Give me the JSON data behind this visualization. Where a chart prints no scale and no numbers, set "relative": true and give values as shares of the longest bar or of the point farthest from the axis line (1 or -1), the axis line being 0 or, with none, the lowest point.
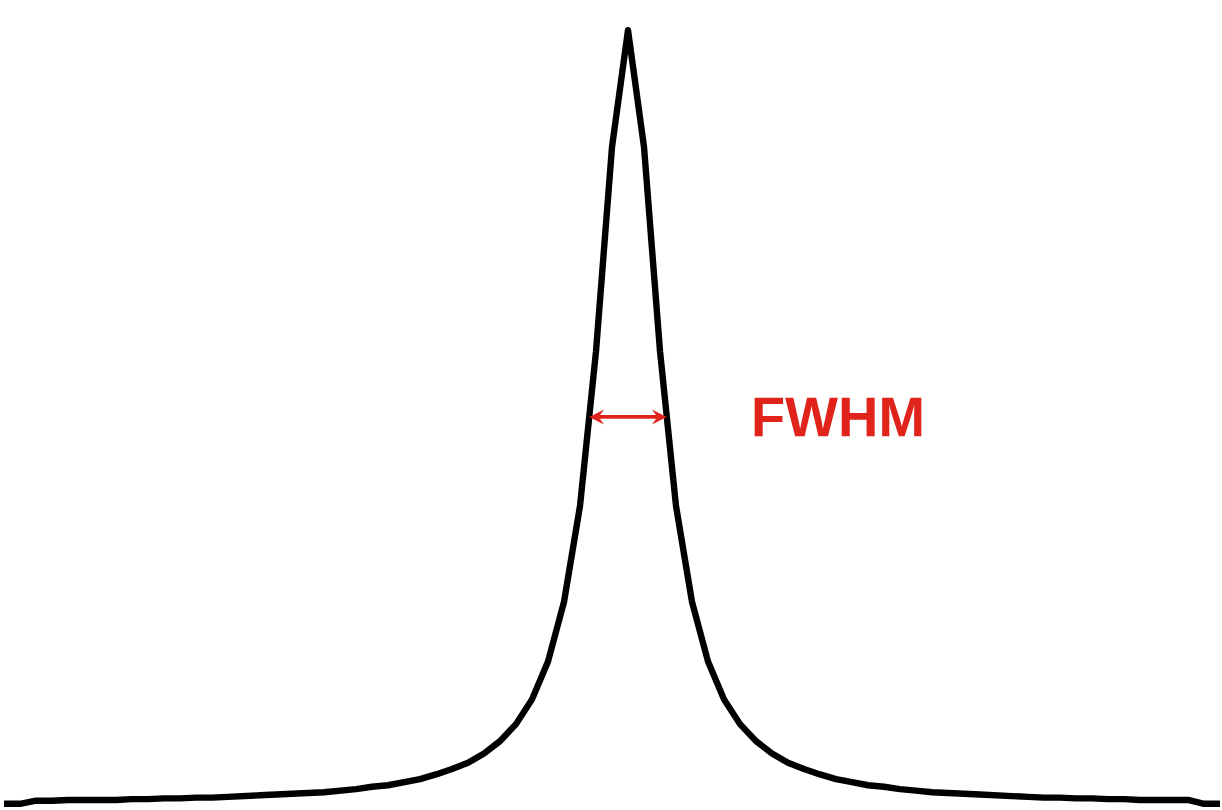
{
  "chart_data": {
    "type": "line",
    "relative": true,
    "marker": "none",
    "categories": [
      null,
      null,
      null,
      null,
      null,
      null,
      null,
      null,
      null,
      null,
      null,
      null,
      null,
      null,
      null,
      null,
      null,
      null,
      null,
      null,
      null,
      null,
      null,
      null,
      null,
      null,
      null,
      null,
      null,
      null,
      null,
      null,
      null,
      null,
      null,
      null,
      null,
      null,
      null,
      null,
      null,
      null,
      null,
      null,
      null,
      null,
      null,
      null,
      null,
      null,
      null,
      null,
      null,
      null,
      null,
      null,
      null,
      null,
      null,
      null,
      null,
      null,
      null,
      null,
      null,
      null,
      null,
      null,
      null,
      null,
      null,
      null,
      null,
      null,
      null,
      null,
      null
    ],
    "series": [
      {
        "color": "#000000",
        "values": [
          0,
          0,
          0.004,
          0.004,
          0.005,
          0.005,
          0.005,
          0.005,
          0.006,
          0.006,
          0.007,
          0.007,
          0.008,
          0.008,
          0.009,
          0.01,
          0.011,
          0.012,
          0.013,
          0.014,
          0.015,
          0.017,
          0.019,
          0.022,
          0.024,
          0.028,
          0.032,
          0.038,
          0.045,
          0.053,
          0.065,
          0.081,
          0.103,
          0.135,
          0.184,
          0.261,
          0.385,
          0.585,
          0.849,
          1,
          0.849,
          0.585,
          0.385,
          0.261,
          0.184,
          0.135,
          0.103,
          0.081,
          0.065,
          0.053,
          0.045,
          0.038,
          0.032,
          0.028,
          0.024,
          0.022,
          0.019,
          0.017,
          0.015,
          0.014,
          0.013,
          0.012,
          0.011,
          0.01,
          0.009,
          0.008,
          0.008,
          0.007,
          0.007,
          0.006,
          0.006,
          0.005,
          0.005,
          0.005,
          0.005,
          0,
          0
        ]
      }
    ],
    "annotations": [
      "FWHM"
    ]
  }
}
